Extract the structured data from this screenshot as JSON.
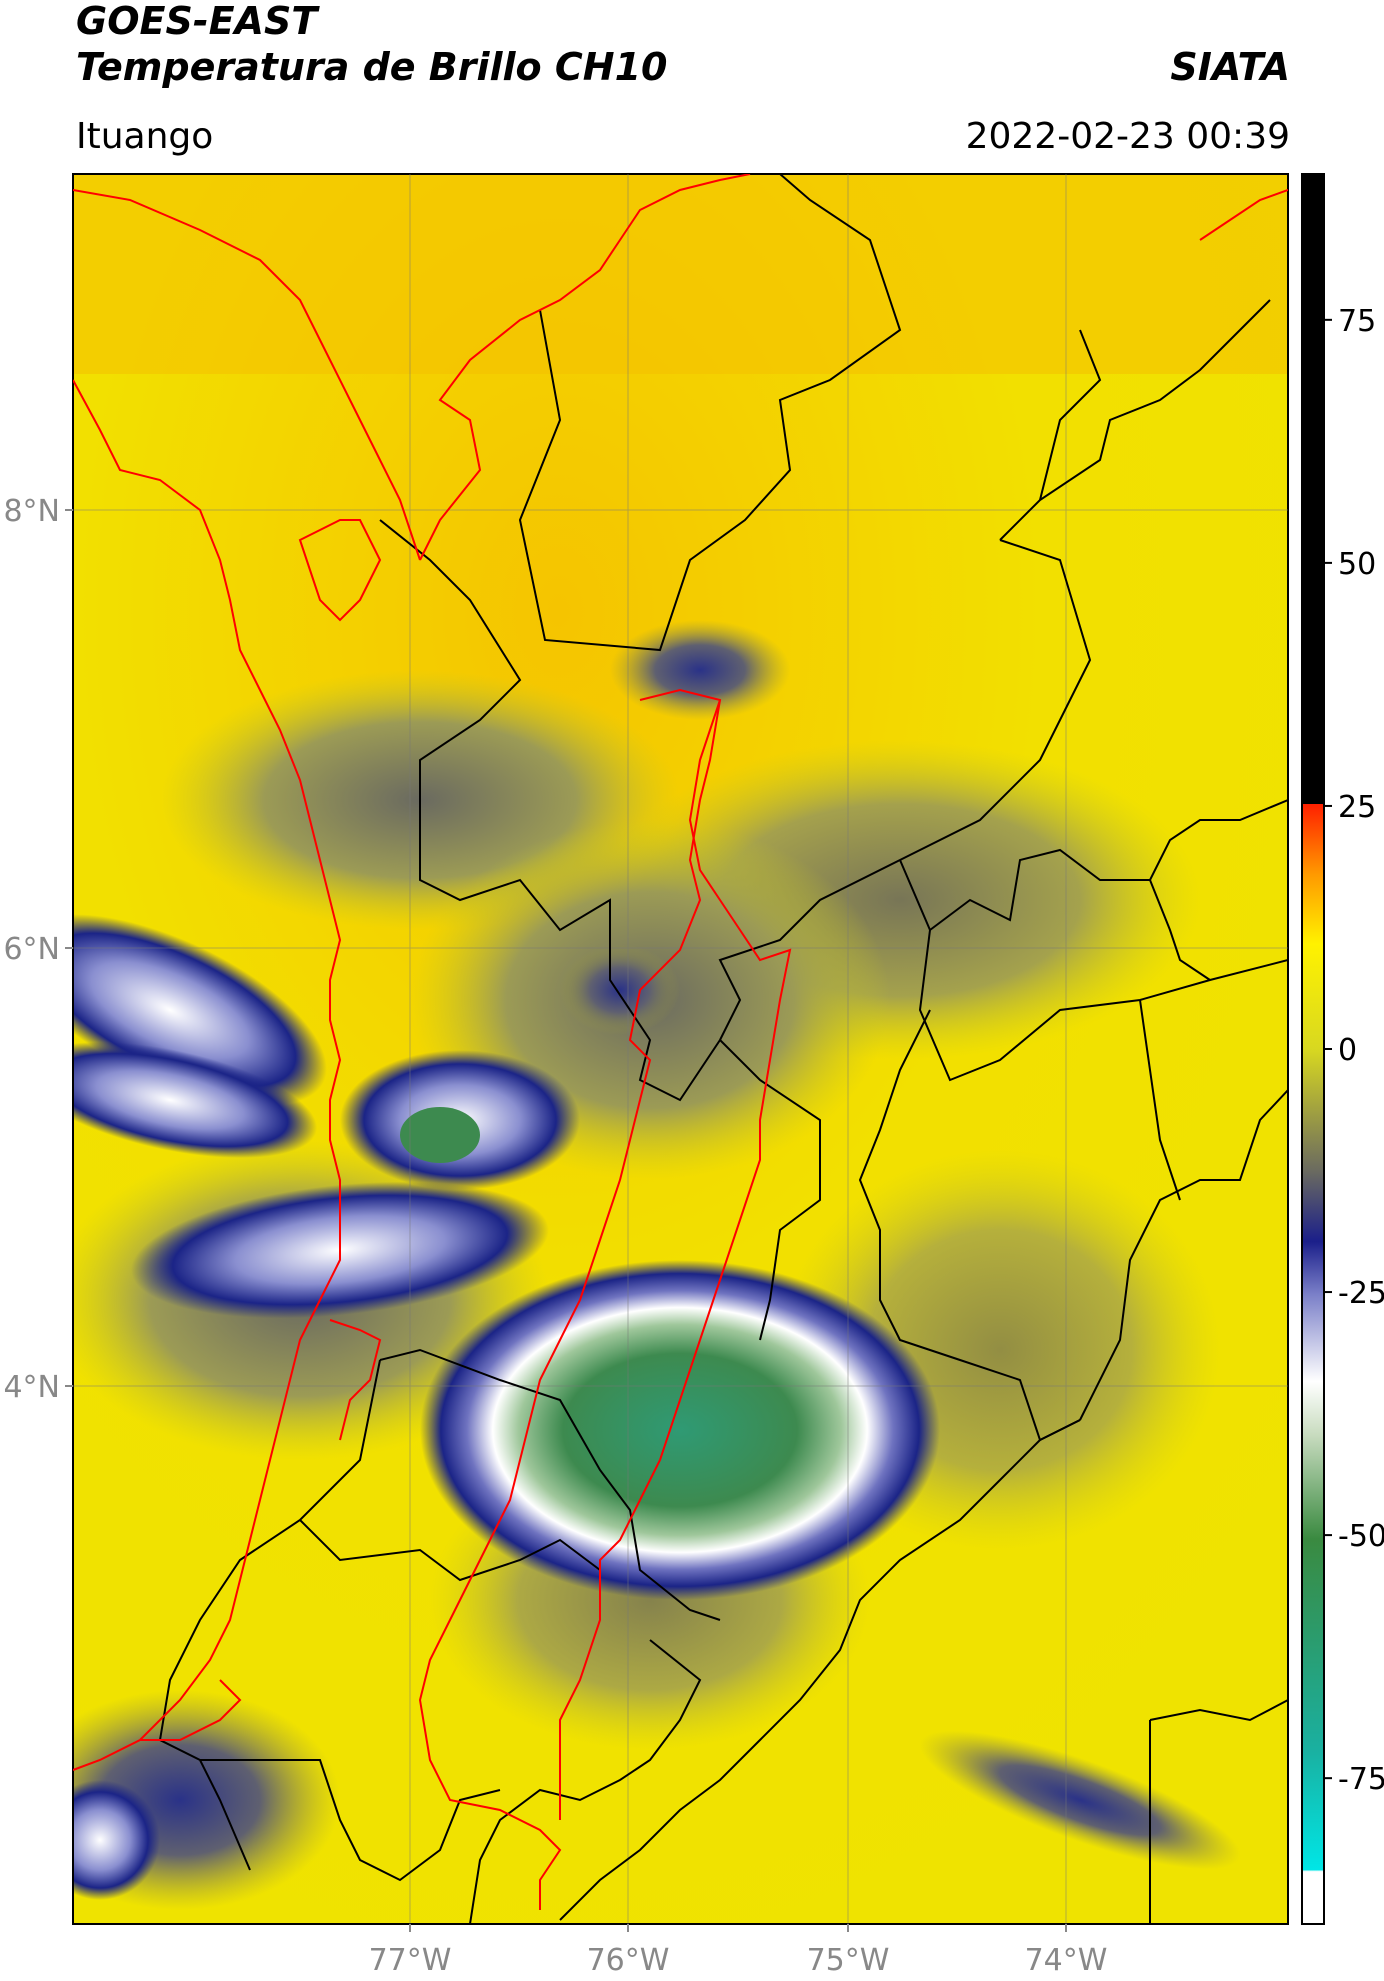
{
  "header": {
    "satellite": "GOES-EAST",
    "product": "Temperatura de Brillo CH10",
    "agency": "SIATA",
    "location": "Ituango",
    "datetime": "2022-02-23 00:39"
  },
  "map": {
    "lat_ticks": [
      "8°N",
      "6°N",
      "4°N"
    ],
    "lon_ticks": [
      "77°W",
      "76°W",
      "75°W",
      "74°W"
    ],
    "colors": {
      "background": "#f2e200",
      "clouds_mid": "#8a8a5a",
      "clouds_cold": "#1a2a8c",
      "cloud_tops": "#ffffff",
      "deep_convection": "#3f8f5a",
      "state_borders": "#000000",
      "coast_and_region": "#ff0000"
    }
  },
  "colorbar": {
    "ticks": [
      "75",
      "50",
      "25",
      "0",
      "-25",
      "-50",
      "-75"
    ],
    "tick_values": [
      75,
      50,
      25,
      0,
      -25,
      -50,
      -75
    ],
    "range": [
      -90,
      90
    ]
  }
}
